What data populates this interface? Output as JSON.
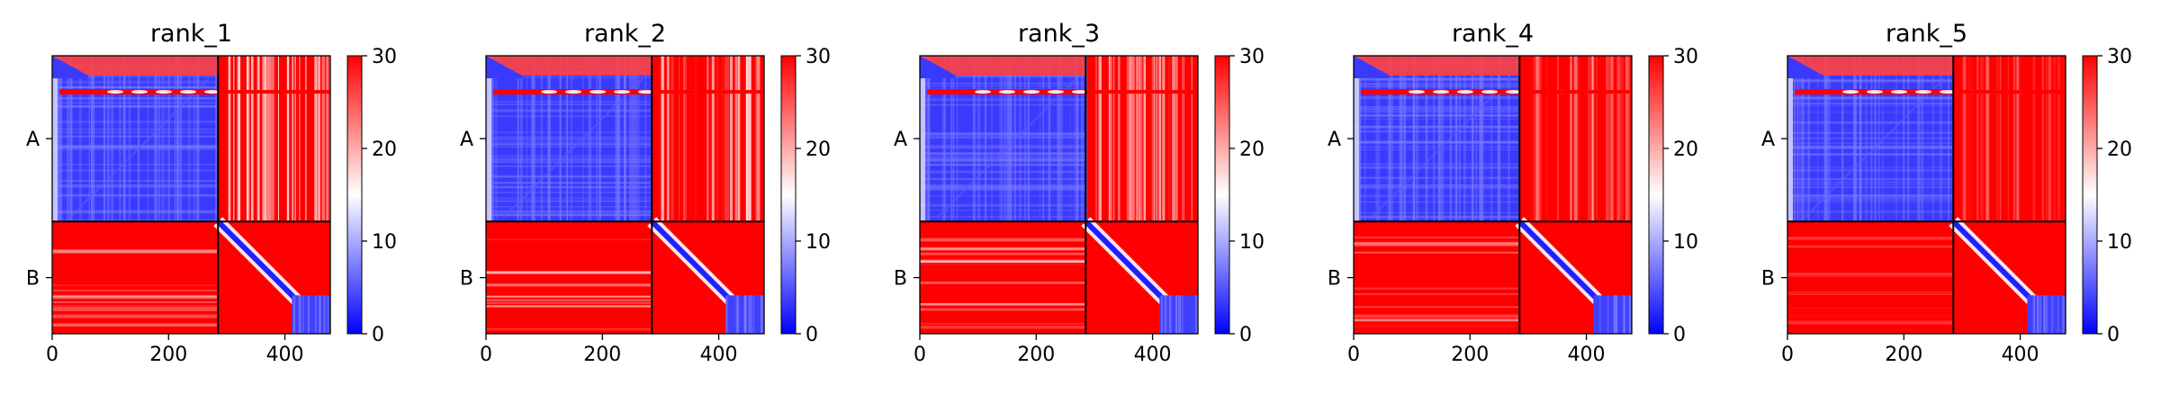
{
  "colors": {
    "low": "#0000ff",
    "mid": "#ffffff",
    "high": "#ff0000",
    "axis": "#000000",
    "background": "#ffffff"
  },
  "chart_data": [
    {
      "type": "heatmap",
      "title": "rank_1",
      "x_ticks": [
        0,
        200,
        400
      ],
      "x_range": [
        0,
        478
      ],
      "chain_labels": [
        "A",
        "B"
      ],
      "chain_boundary": 285,
      "colorbar": {
        "min": 0,
        "max": 30,
        "ticks": [
          0,
          10,
          20,
          30
        ]
      },
      "colormap": "bwr"
    },
    {
      "type": "heatmap",
      "title": "rank_2",
      "x_ticks": [
        0,
        200,
        400
      ],
      "x_range": [
        0,
        478
      ],
      "chain_labels": [
        "A",
        "B"
      ],
      "chain_boundary": 285,
      "colorbar": {
        "min": 0,
        "max": 30,
        "ticks": [
          0,
          10,
          20,
          30
        ]
      },
      "colormap": "bwr"
    },
    {
      "type": "heatmap",
      "title": "rank_3",
      "x_ticks": [
        0,
        200,
        400
      ],
      "x_range": [
        0,
        478
      ],
      "chain_labels": [
        "A",
        "B"
      ],
      "chain_boundary": 285,
      "colorbar": {
        "min": 0,
        "max": 30,
        "ticks": [
          0,
          10,
          20,
          30
        ]
      },
      "colormap": "bwr"
    },
    {
      "type": "heatmap",
      "title": "rank_4",
      "x_ticks": [
        0,
        200,
        400
      ],
      "x_range": [
        0,
        478
      ],
      "chain_labels": [
        "A",
        "B"
      ],
      "chain_boundary": 285,
      "colorbar": {
        "min": 0,
        "max": 30,
        "ticks": [
          0,
          10,
          20,
          30
        ]
      },
      "colormap": "bwr"
    },
    {
      "type": "heatmap",
      "title": "rank_5",
      "x_ticks": [
        0,
        200,
        400
      ],
      "x_range": [
        0,
        478
      ],
      "chain_labels": [
        "A",
        "B"
      ],
      "chain_boundary": 285,
      "colorbar": {
        "min": 0,
        "max": 30,
        "ticks": [
          0,
          10,
          20,
          30
        ]
      },
      "colormap": "bwr"
    }
  ]
}
